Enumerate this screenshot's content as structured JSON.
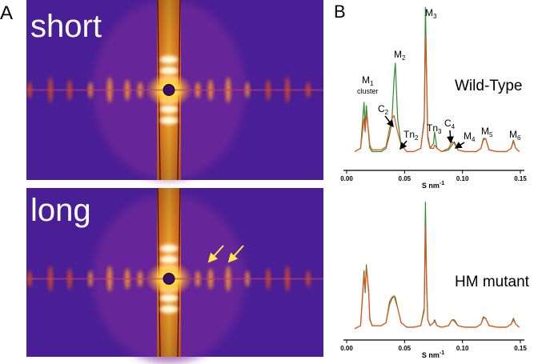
{
  "figure": {
    "panel_labels": [
      "A",
      "B"
    ],
    "image_labels": [
      "short",
      "long"
    ]
  },
  "chart_data": [
    {
      "type": "line",
      "title": "Wild-Type",
      "x_label": {
        "text": "S nm",
        "sup": "-1"
      },
      "xlim": [
        0,
        0.15
      ],
      "xticks": [
        {
          "value": 0,
          "label": "0.00"
        },
        {
          "value": 0.05,
          "label": "0.05"
        },
        {
          "value": 0.1,
          "label": "0.10"
        },
        {
          "value": 0.15,
          "label": "0.15"
        }
      ],
      "ylim": [
        0,
        100
      ],
      "x": [
        0.007,
        0.012,
        0.015,
        0.016,
        0.017,
        0.019,
        0.02,
        0.022,
        0.026,
        0.03,
        0.034,
        0.037,
        0.039,
        0.041,
        0.042,
        0.044,
        0.047,
        0.052,
        0.058,
        0.064,
        0.067,
        0.068,
        0.069,
        0.07,
        0.072,
        0.075,
        0.076,
        0.078,
        0.082,
        0.088,
        0.091,
        0.093,
        0.096,
        0.102,
        0.108,
        0.112,
        0.116,
        0.118,
        0.12,
        0.123,
        0.13,
        0.138,
        0.142,
        0.144,
        0.146,
        0.149
      ],
      "series": [
        {
          "color": "#2e8b2e",
          "values": [
            10,
            12,
            40,
            25,
            38,
            20,
            12,
            10,
            10,
            10,
            12,
            20,
            28,
            55,
            64,
            30,
            14,
            10,
            10,
            12,
            30,
            98,
            60,
            20,
            12,
            15,
            22,
            12,
            10,
            11,
            14,
            16,
            11,
            10,
            10,
            10,
            12,
            18,
            18,
            11,
            10,
            10,
            12,
            17,
            12,
            10
          ]
        },
        {
          "color": "#e0531f",
          "values": [
            10,
            12,
            30,
            22,
            33,
            22,
            14,
            11,
            11,
            11,
            13,
            24,
            30,
            32,
            28,
            22,
            14,
            10,
            10,
            12,
            28,
            80,
            55,
            18,
            12,
            12,
            14,
            12,
            10,
            12,
            16,
            15,
            11,
            10,
            10,
            10,
            12,
            17,
            18,
            11,
            10,
            10,
            12,
            16,
            12,
            10
          ]
        }
      ],
      "annotations": [
        {
          "text": "M",
          "sub": "1",
          "note": "cluster"
        },
        {
          "text": "M",
          "sub": "2"
        },
        {
          "text": "M",
          "sub": "3"
        },
        {
          "text": "C",
          "sub": "2"
        },
        {
          "text": "Tn",
          "sub": "2"
        },
        {
          "text": "Tn",
          "sub": "3"
        },
        {
          "text": "C",
          "sub": "4"
        },
        {
          "text": "M",
          "sub": "4"
        },
        {
          "text": "M",
          "sub": "5"
        },
        {
          "text": "M",
          "sub": "6"
        }
      ]
    },
    {
      "type": "line",
      "title": "HM mutant",
      "x_label": {
        "text": "S nm",
        "sup": "-1"
      },
      "xlim": [
        0,
        0.15
      ],
      "xticks": [
        {
          "value": 0,
          "label": "0.00"
        },
        {
          "value": 0.05,
          "label": "0.05"
        },
        {
          "value": 0.1,
          "label": "0.10"
        },
        {
          "value": 0.15,
          "label": "0.15"
        }
      ],
      "ylim": [
        0,
        100
      ],
      "x": [
        0.007,
        0.012,
        0.015,
        0.016,
        0.017,
        0.019,
        0.02,
        0.022,
        0.026,
        0.03,
        0.034,
        0.037,
        0.039,
        0.041,
        0.042,
        0.044,
        0.047,
        0.052,
        0.058,
        0.064,
        0.067,
        0.068,
        0.069,
        0.07,
        0.072,
        0.075,
        0.076,
        0.078,
        0.082,
        0.088,
        0.091,
        0.093,
        0.096,
        0.102,
        0.108,
        0.112,
        0.116,
        0.118,
        0.12,
        0.123,
        0.13,
        0.138,
        0.142,
        0.144,
        0.146,
        0.149
      ],
      "series": [
        {
          "color": "#2e8b2e",
          "values": [
            6,
            8,
            45,
            30,
            49,
            30,
            12,
            8,
            8,
            8,
            10,
            22,
            26,
            28,
            27,
            20,
            10,
            7,
            7,
            8,
            20,
            91,
            40,
            12,
            8,
            10,
            12,
            8,
            7,
            8,
            12,
            12,
            8,
            7,
            7,
            7,
            9,
            14,
            13,
            8,
            7,
            7,
            9,
            13,
            9,
            7
          ]
        },
        {
          "color": "#e0531f",
          "values": [
            6,
            8,
            42,
            32,
            47,
            32,
            13,
            8,
            8,
            8,
            10,
            24,
            27,
            28,
            25,
            20,
            10,
            7,
            7,
            8,
            18,
            75,
            35,
            12,
            8,
            10,
            11,
            8,
            7,
            8,
            12,
            11,
            8,
            7,
            7,
            7,
            9,
            13,
            13,
            8,
            7,
            7,
            9,
            12,
            9,
            7
          ]
        }
      ]
    }
  ]
}
